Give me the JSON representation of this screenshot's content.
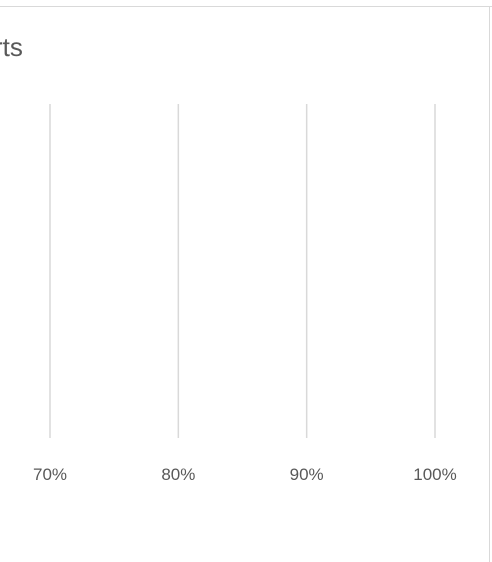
{
  "chart_data": {
    "type": "bar",
    "title": "rts",
    "xlabel": "",
    "ylabel": "",
    "xlim": [
      0.6,
      1.0
    ],
    "x_ticks": [
      0.7,
      0.8,
      0.9,
      1.0
    ],
    "x_tick_labels": [
      "70%",
      "80%",
      "90%",
      "100%"
    ],
    "categories": [],
    "series": [],
    "grid": "vertical",
    "legend": "none"
  },
  "colors": {
    "gridline": "#d9d9d9",
    "text": "#595959",
    "border": "#d9d9d9"
  }
}
